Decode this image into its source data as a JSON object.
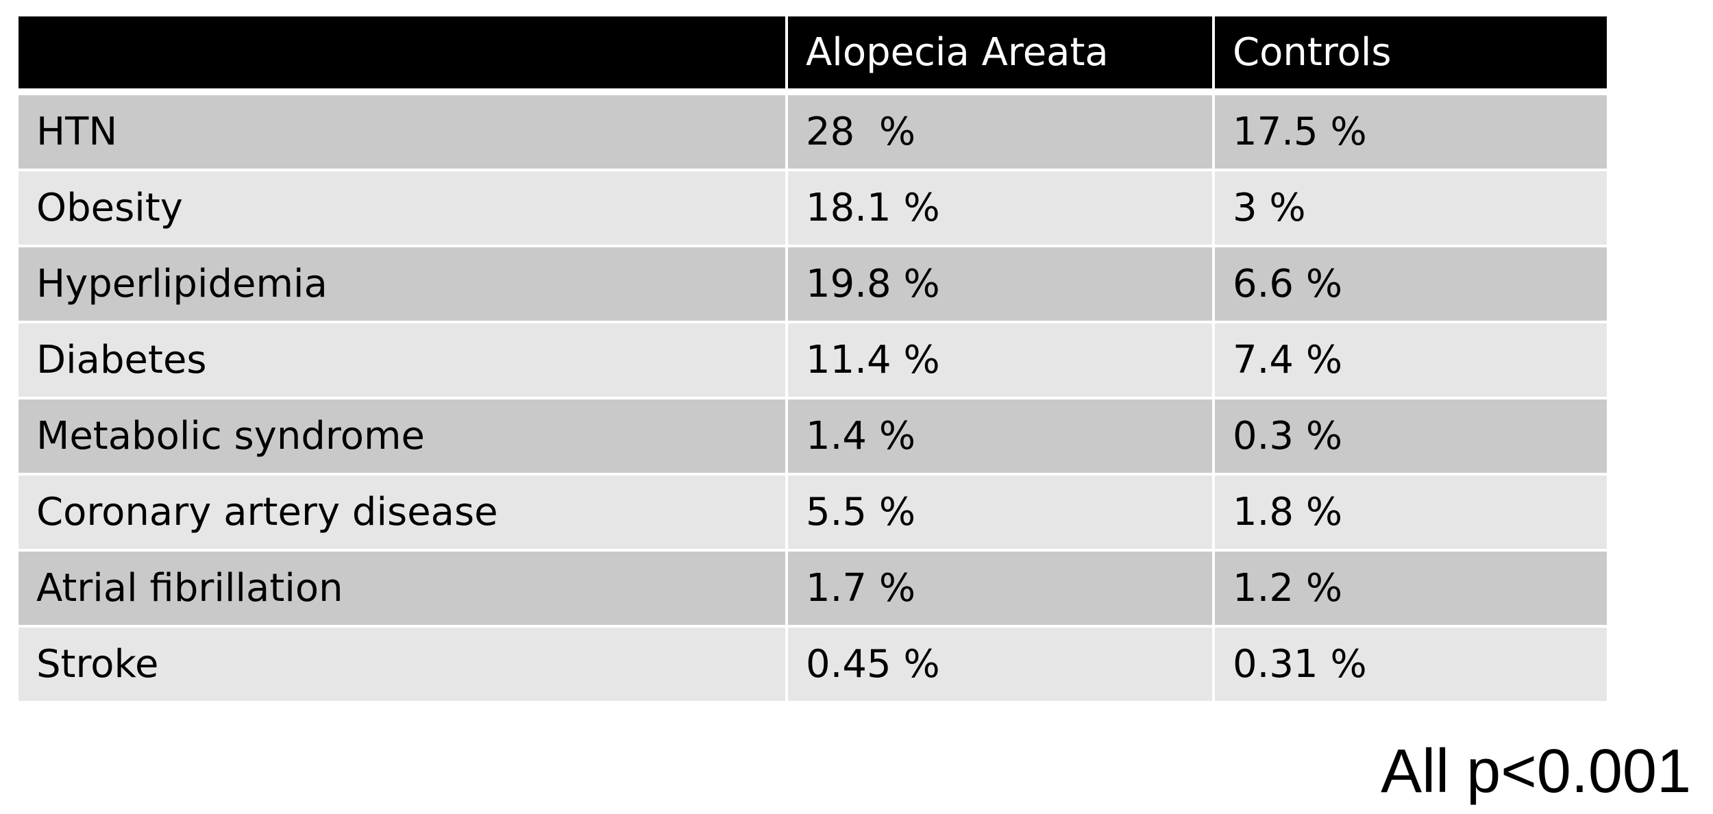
{
  "table": {
    "header": [
      "Alopecia Areata",
      "Controls"
    ],
    "rows": [
      [
        "HTN",
        "28  %",
        "17.5 %"
      ],
      [
        "Obesity",
        "18.1 %",
        "3 %"
      ],
      [
        "Hyperlipidemia",
        "19.8 %",
        "6.6 %"
      ],
      [
        "Diabetes",
        "11.4 %",
        "7.4 %"
      ],
      [
        "Metabolic syndrome",
        "1.4 %",
        "0.3 %"
      ],
      [
        "Coronary artery disease",
        "5.5 %",
        "1.8 %"
      ],
      [
        "Atrial fibrillation",
        "1.7 %",
        "1.2 %"
      ],
      [
        "Stroke",
        "0.45 %",
        "0.31 %"
      ]
    ]
  },
  "footnote": "All p<0.001"
}
